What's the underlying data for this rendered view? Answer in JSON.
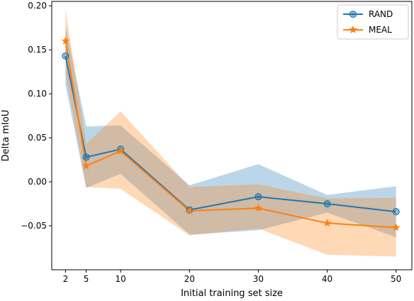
{
  "chart_data": {
    "type": "line",
    "xlabel": "Initial training set size",
    "ylabel": "Delta mIoU",
    "x": [
      2,
      5,
      10,
      20,
      30,
      40,
      50
    ],
    "x_ticks": [
      "2",
      "5",
      "10",
      "20",
      "30",
      "40",
      "50"
    ],
    "y_ticks": [
      "0.20",
      "0.15",
      "0.10",
      "0.05",
      "0.00",
      "−0.05"
    ],
    "xlim": [
      0,
      52.3
    ],
    "ylim": [
      -0.1,
      0.205
    ],
    "grid": false,
    "legend_position": "top-right",
    "series": [
      {
        "name": "RAND",
        "color": "#1f77b4",
        "marker": "circle-ring",
        "values": [
          0.143,
          0.028,
          0.037,
          -0.032,
          -0.017,
          -0.025,
          -0.034
        ],
        "band_upper": [
          0.177,
          0.063,
          0.064,
          -0.004,
          0.02,
          -0.015,
          -0.005
        ],
        "band_lower": [
          0.11,
          -0.007,
          0.009,
          -0.06,
          -0.055,
          -0.035,
          -0.063
        ]
      },
      {
        "name": "MEAL",
        "color": "#ff7f0e",
        "marker": "star",
        "values": [
          0.16,
          0.018,
          0.035,
          -0.033,
          -0.03,
          -0.047,
          -0.052
        ],
        "band_upper": [
          0.196,
          0.043,
          0.08,
          -0.006,
          -0.003,
          -0.019,
          -0.018
        ],
        "band_lower": [
          0.123,
          -0.006,
          -0.008,
          -0.061,
          -0.053,
          -0.083,
          -0.085
        ]
      }
    ]
  }
}
